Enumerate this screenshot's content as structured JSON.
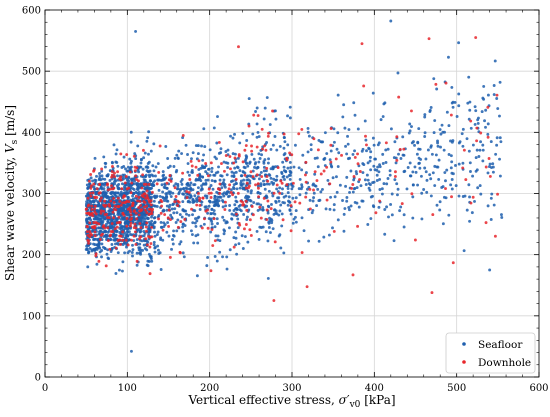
{
  "chart_data": {
    "type": "scatter",
    "xlabel": "Vertical effective stress, σ′v0 [kPa]",
    "xlabel_main": "Vertical effective stress, ",
    "xlabel_sym": "σ",
    "xlabel_prime": "′",
    "xlabel_sub": "v0",
    "xlabel_unit": " [kPa]",
    "ylabel": "Shear wave velocity, Vs [m/s]",
    "ylabel_main": "Shear wave velocity, ",
    "ylabel_sym": "V",
    "ylabel_sub": "s",
    "ylabel_unit": " [m/s]",
    "xlim": [
      0,
      600
    ],
    "ylim": [
      0,
      600
    ],
    "xticks": [
      0,
      100,
      200,
      300,
      400,
      500,
      600
    ],
    "yticks": [
      0,
      100,
      200,
      300,
      400,
      500,
      600
    ],
    "grid": true,
    "legend_position": "bottom-right",
    "series": [
      {
        "name": "Seafloor",
        "color": "#1f5fae",
        "approx_count": 2600
      },
      {
        "name": "Downhole",
        "color": "#e8262b",
        "approx_count": 500
      }
    ],
    "notable_points": [
      {
        "series": "Seafloor",
        "x": 110,
        "y": 565
      },
      {
        "series": "Seafloor",
        "x": 420,
        "y": 582
      },
      {
        "series": "Seafloor",
        "x": 105,
        "y": 42
      },
      {
        "series": "Downhole",
        "x": 385,
        "y": 545
      },
      {
        "series": "Downhole",
        "x": 235,
        "y": 540
      },
      {
        "series": "Downhole",
        "x": 278,
        "y": 125
      },
      {
        "series": "Downhole",
        "x": 470,
        "y": 138
      }
    ]
  }
}
